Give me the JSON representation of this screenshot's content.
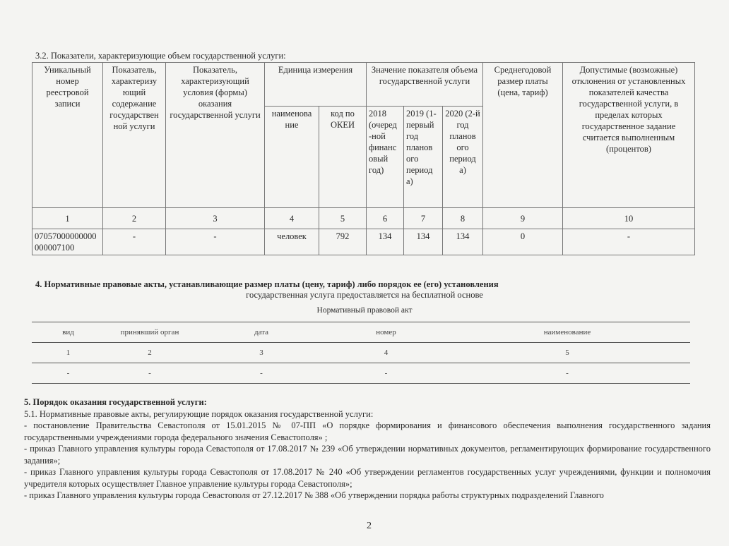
{
  "section32": {
    "title": "3.2. Показатели, характеризующие объем государственной услуги:",
    "headers": {
      "c1": "Уникальный номер реестровой записи",
      "c2": "Показатель, характеризу ющий содержание государствен ной услуги",
      "c3": "Показатель, характеризующий условия (формы) оказания государственной услуги",
      "unit": "Единица измерения",
      "unit_name": "наименова ние",
      "unit_code": "код по ОКЕИ",
      "value": "Значение показателя объема государственной услуги",
      "y2018": "2018 (очеред -ной финанс овый год)",
      "y2019": "2019 (1- первый год планов ого период а)",
      "y2020": "2020 (2-й год планов ого период а)",
      "fee": "Среднегодовой размер платы (цена, тариф)",
      "dev": "Допустимые (возможные) отклонения от установленных показателей качества государственной услуги, в пределах которых государственное задание считается выполненным (процентов)"
    },
    "numbers": [
      "1",
      "2",
      "3",
      "4",
      "5",
      "6",
      "7",
      "8",
      "9",
      "10"
    ],
    "row": [
      "07057000000000000007100",
      "-",
      "-",
      "человек",
      "792",
      "134",
      "134",
      "134",
      "0",
      "-"
    ]
  },
  "section4": {
    "title": "4.  Нормативные  правовые  акты, устанавливающие размер платы (цену, тариф) либо порядок ее (его) установления",
    "subtitle": "государственная услуга предоставляется на бесплатной основе",
    "table_caption": "Нормативный правовой акт",
    "headers": [
      "вид",
      "принявший орган",
      "дата",
      "номер",
      "наименование"
    ],
    "numbers": [
      "1",
      "2",
      "3",
      "4",
      "5"
    ],
    "row": [
      "-",
      "-",
      "-",
      "-",
      "-"
    ]
  },
  "section5": {
    "title": "5.  Порядок оказания государственной услуги:",
    "sub": "5.1.   Нормативные  правовые  акты,  регулирующие  порядок  оказания государственной услуги:",
    "items": [
      "- постановление Правительства Севастополя от 15.01.2015 № 07-ПП «О порядке формирования и финансового обеспечения выполнения государственного задания государственными учреждениями города федерального значения Севастополя» ;",
      "- приказ Главного управления культуры города Севастополя от 17.08.2017 № 239 «Об утверждении нормативных документов, регламентирующих формирование государственного задания»;",
      "-  приказ Главного управления культуры города Севастополя от 17.08.2017 № 240 «Об утверждении регламентов государственных услуг учреждениями, функции и полномочия учредителя которых осуществляет Главное управление культуры города Севастополя»;",
      "-  приказ Главного управления культуры города Севастополя  от 27.12.2017 № 388 «Об утверждении порядка работы структурных подразделений Главного"
    ]
  },
  "page_number": "2"
}
